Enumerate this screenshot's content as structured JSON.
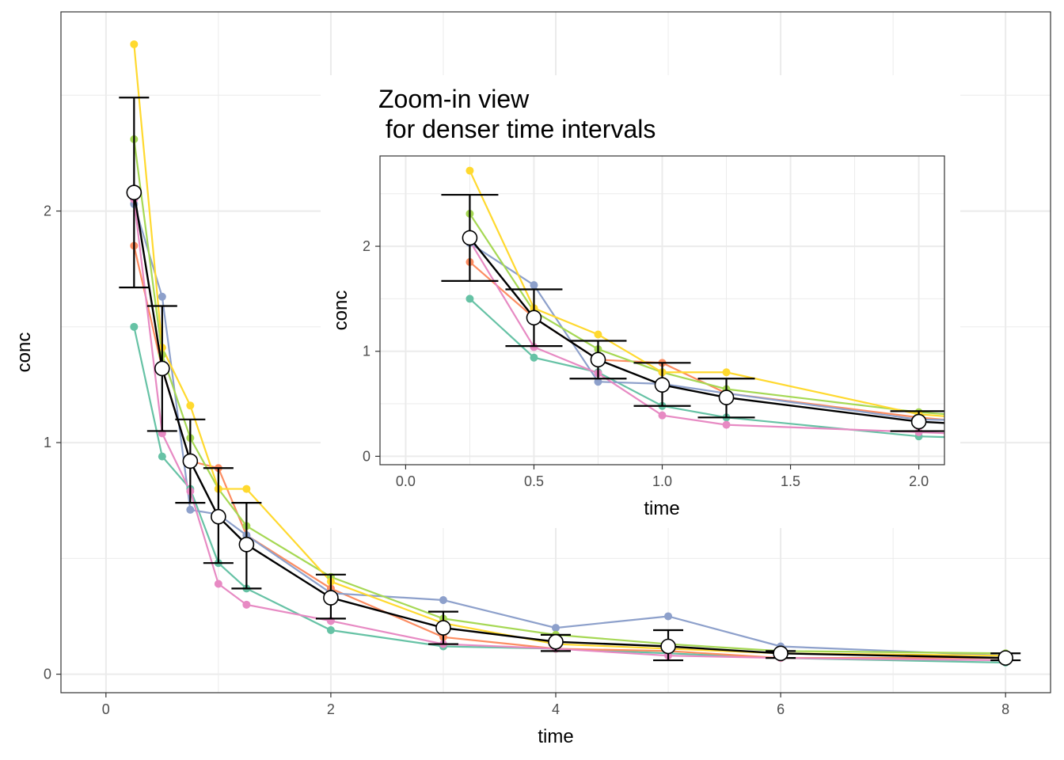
{
  "chart_data": [
    {
      "type": "line",
      "panel": "main",
      "title": "",
      "xlabel": "time",
      "ylabel": "conc",
      "xlim": [
        -0.4,
        8.4
      ],
      "ylim": [
        -0.08,
        2.86
      ],
      "xticks": [
        0,
        2,
        4,
        6,
        8
      ],
      "xtick_labels": [
        "0",
        "2",
        "4",
        "6",
        "8"
      ],
      "yticks": [
        0,
        1,
        2
      ],
      "ytick_labels": [
        "0",
        "1",
        "2"
      ],
      "grid": true,
      "legend": "none",
      "series": [
        {
          "color": "#66C2A5",
          "points": [
            [
              0.25,
              1.5
            ],
            [
              0.5,
              0.94
            ],
            [
              0.75,
              0.8
            ],
            [
              1.0,
              0.48
            ],
            [
              1.25,
              0.37
            ],
            [
              2.0,
              0.19
            ],
            [
              3.0,
              0.12
            ],
            [
              4.0,
              0.11
            ],
            [
              5.0,
              0.09
            ],
            [
              6.0,
              0.07
            ],
            [
              8.0,
              0.05
            ]
          ]
        },
        {
          "color": "#FC8D62",
          "points": [
            [
              0.25,
              1.85
            ],
            [
              0.5,
              1.32
            ],
            [
              0.75,
              0.92
            ],
            [
              1.0,
              0.89
            ],
            [
              1.25,
              0.6
            ],
            [
              2.0,
              0.37
            ],
            [
              3.0,
              0.16
            ],
            [
              4.0,
              0.11
            ],
            [
              5.0,
              0.1
            ],
            [
              6.0,
              0.07
            ],
            [
              8.0,
              0.07
            ]
          ]
        },
        {
          "color": "#8DA0CB",
          "points": [
            [
              0.25,
              2.03
            ],
            [
              0.5,
              1.63
            ],
            [
              0.75,
              0.71
            ],
            [
              1.0,
              0.69
            ],
            [
              1.25,
              0.6
            ],
            [
              2.0,
              0.35
            ],
            [
              3.0,
              0.32
            ],
            [
              4.0,
              0.2
            ],
            [
              5.0,
              0.25
            ],
            [
              6.0,
              0.12
            ],
            [
              8.0,
              0.08
            ]
          ]
        },
        {
          "color": "#E78AC3",
          "points": [
            [
              0.25,
              2.05
            ],
            [
              0.5,
              1.04
            ],
            [
              0.75,
              0.79
            ],
            [
              1.0,
              0.39
            ],
            [
              1.25,
              0.3
            ],
            [
              2.0,
              0.23
            ],
            [
              3.0,
              0.13
            ],
            [
              4.0,
              0.11
            ],
            [
              5.0,
              0.08
            ],
            [
              6.0,
              0.07
            ],
            [
              8.0,
              0.06
            ]
          ]
        },
        {
          "color": "#A6D854",
          "points": [
            [
              0.25,
              2.31
            ],
            [
              0.5,
              1.38
            ],
            [
              0.75,
              1.02
            ],
            [
              1.0,
              0.8
            ],
            [
              1.25,
              0.64
            ],
            [
              2.0,
              0.42
            ],
            [
              3.0,
              0.24
            ],
            [
              4.0,
              0.17
            ],
            [
              5.0,
              0.13
            ],
            [
              6.0,
              0.1
            ],
            [
              8.0,
              0.09
            ]
          ]
        },
        {
          "color": "#FFD92F",
          "points": [
            [
              0.25,
              2.72
            ],
            [
              0.5,
              1.41
            ],
            [
              0.75,
              1.16
            ],
            [
              1.0,
              0.8
            ],
            [
              1.25,
              0.8
            ],
            [
              2.0,
              0.4
            ],
            [
              3.0,
              0.22
            ],
            [
              4.0,
              0.13
            ],
            [
              5.0,
              0.11
            ],
            [
              6.0,
              0.09
            ],
            [
              8.0,
              0.08
            ]
          ]
        }
      ],
      "mean": {
        "color": "#000000",
        "points": [
          {
            "x": 0.25,
            "y": 2.08,
            "lo": 1.67,
            "hi": 2.49
          },
          {
            "x": 0.5,
            "y": 1.32,
            "lo": 1.05,
            "hi": 1.59
          },
          {
            "x": 0.75,
            "y": 0.92,
            "lo": 0.74,
            "hi": 1.1
          },
          {
            "x": 1.0,
            "y": 0.68,
            "lo": 0.48,
            "hi": 0.89
          },
          {
            "x": 1.25,
            "y": 0.56,
            "lo": 0.37,
            "hi": 0.74
          },
          {
            "x": 2.0,
            "y": 0.33,
            "lo": 0.24,
            "hi": 0.43
          },
          {
            "x": 3.0,
            "y": 0.2,
            "lo": 0.13,
            "hi": 0.27
          },
          {
            "x": 4.0,
            "y": 0.14,
            "lo": 0.1,
            "hi": 0.17
          },
          {
            "x": 5.0,
            "y": 0.12,
            "lo": 0.06,
            "hi": 0.19
          },
          {
            "x": 6.0,
            "y": 0.09,
            "lo": 0.07,
            "hi": 0.1
          },
          {
            "x": 8.0,
            "y": 0.07,
            "lo": 0.06,
            "hi": 0.09
          }
        ]
      }
    },
    {
      "type": "line",
      "panel": "inset",
      "title": "Zoom-in view\n for denser time intervals",
      "xlabel": "time",
      "ylabel": "conc",
      "xlim": [
        -0.1,
        2.1
      ],
      "ylim": [
        -0.08,
        2.86
      ],
      "xticks": [
        0.0,
        0.5,
        1.0,
        1.5,
        2.0
      ],
      "xtick_labels": [
        "0.0",
        "0.5",
        "1.0",
        "1.5",
        "2.0"
      ],
      "yticks": [
        0,
        1,
        2
      ],
      "ytick_labels": [
        "0",
        "1",
        "2"
      ],
      "grid": true,
      "legend": "none"
    }
  ]
}
